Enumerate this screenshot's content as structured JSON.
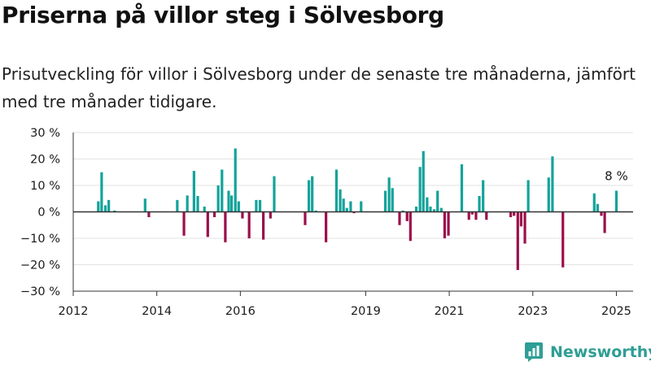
{
  "header": {
    "title": "Priserna på villor steg i Sölvesborg",
    "subtitle": "Prisutveckling för villor i Sölvesborg under de senaste tre månaderna, jämfört med tre månader tidigare."
  },
  "brand": {
    "name": "Newsworthy"
  },
  "colors": {
    "positive": "#13a39a",
    "negative": "#9b0f4b",
    "grid": "#e3e3e3",
    "axis": "#333333",
    "text": "#1a1a1a"
  },
  "chart_data": {
    "type": "bar",
    "title": "Priserna på villor steg i Sölvesborg",
    "xlabel": "",
    "ylabel": "",
    "ylim": [
      -30,
      30
    ],
    "grid": true,
    "legend": "none",
    "y_ticks": [
      30,
      20,
      10,
      0,
      -10,
      -20,
      -30
    ],
    "y_tick_labels": [
      "30 %",
      "20 %",
      "10 %",
      "0 %",
      "−10 %",
      "−20 %",
      "−30 %"
    ],
    "x_ticks": [
      2012,
      2014,
      2016,
      2019,
      2021,
      2023,
      2025
    ],
    "x_tick_labels": [
      "2012",
      "2014",
      "2016",
      "2019",
      "2021",
      "2023",
      "2025"
    ],
    "x_range": [
      2012.0,
      2025.4
    ],
    "annotation": {
      "text": "8 %",
      "x": 2025.0,
      "y": 8
    },
    "series": [
      {
        "values": [
          [
            2012.6,
            4
          ],
          [
            2012.68,
            15
          ],
          [
            2012.77,
            2.5
          ],
          [
            2012.85,
            4.5
          ],
          [
            2012.99,
            0.5
          ],
          [
            2013.72,
            5
          ],
          [
            2013.81,
            -2
          ],
          [
            2014.49,
            4.5
          ],
          [
            2014.65,
            -9
          ],
          [
            2014.73,
            6.2
          ],
          [
            2014.89,
            15.5
          ],
          [
            2014.98,
            6
          ],
          [
            2015.14,
            2
          ],
          [
            2015.22,
            -9.5
          ],
          [
            2015.38,
            -2
          ],
          [
            2015.47,
            10
          ],
          [
            2015.56,
            16
          ],
          [
            2015.64,
            -11.5
          ],
          [
            2015.72,
            8
          ],
          [
            2015.79,
            6.2
          ],
          [
            2015.88,
            24
          ],
          [
            2015.96,
            4
          ],
          [
            2016.05,
            -2.5
          ],
          [
            2016.21,
            -10
          ],
          [
            2016.38,
            4.5
          ],
          [
            2016.47,
            4.5
          ],
          [
            2016.55,
            -10.5
          ],
          [
            2016.72,
            -2.5
          ],
          [
            2016.81,
            13.5
          ],
          [
            2017.55,
            -5
          ],
          [
            2017.64,
            12
          ],
          [
            2017.72,
            13.5
          ],
          [
            2017.81,
            0.5
          ],
          [
            2018.05,
            -11.5
          ],
          [
            2018.3,
            16
          ],
          [
            2018.39,
            8.5
          ],
          [
            2018.47,
            5
          ],
          [
            2018.55,
            1.5
          ],
          [
            2018.64,
            4
          ],
          [
            2018.72,
            -0.5
          ],
          [
            2018.89,
            4
          ],
          [
            2019.47,
            8
          ],
          [
            2019.56,
            13
          ],
          [
            2019.64,
            9
          ],
          [
            2019.81,
            -5
          ],
          [
            2019.89,
            0.5
          ],
          [
            2019.99,
            -3.5
          ],
          [
            2020.07,
            -11
          ],
          [
            2020.21,
            2
          ],
          [
            2020.3,
            17
          ],
          [
            2020.38,
            23
          ],
          [
            2020.47,
            5.5
          ],
          [
            2020.55,
            2
          ],
          [
            2020.64,
            1
          ],
          [
            2020.72,
            8
          ],
          [
            2020.81,
            1.5
          ],
          [
            2020.89,
            -10
          ],
          [
            2020.98,
            -9
          ],
          [
            2021.3,
            18
          ],
          [
            2021.47,
            -3
          ],
          [
            2021.55,
            -1
          ],
          [
            2021.64,
            -3
          ],
          [
            2021.72,
            6
          ],
          [
            2021.81,
            12
          ],
          [
            2021.89,
            -3
          ],
          [
            2022.47,
            -2
          ],
          [
            2022.55,
            -1.5
          ],
          [
            2022.64,
            -22
          ],
          [
            2022.72,
            -5.5
          ],
          [
            2022.81,
            -12
          ],
          [
            2022.89,
            12
          ],
          [
            2023.38,
            13
          ],
          [
            2023.47,
            21
          ],
          [
            2023.72,
            -21
          ],
          [
            2024.47,
            7
          ],
          [
            2024.55,
            3
          ],
          [
            2024.64,
            -1.5
          ],
          [
            2024.72,
            -8
          ],
          [
            2025.0,
            8
          ]
        ]
      }
    ]
  }
}
